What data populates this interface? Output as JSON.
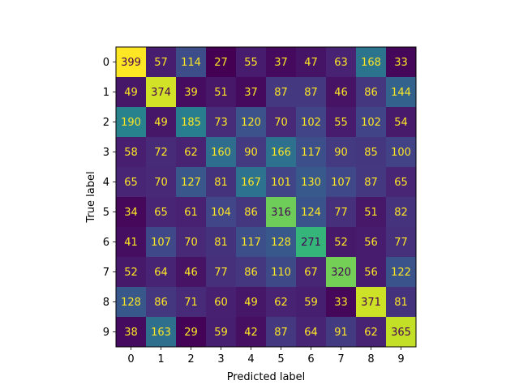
{
  "chart_data": {
    "type": "heatmap",
    "title": "",
    "xlabel": "Predicted label",
    "ylabel": "True label",
    "x_categories": [
      "0",
      "1",
      "2",
      "3",
      "4",
      "5",
      "6",
      "7",
      "8",
      "9"
    ],
    "y_categories": [
      "0",
      "1",
      "2",
      "3",
      "4",
      "5",
      "6",
      "7",
      "8",
      "9"
    ],
    "colormap": "viridis",
    "value_range": [
      27,
      399
    ],
    "text_color_dark": "#440154",
    "text_color_light": "#fde725",
    "values": [
      [
        399,
        57,
        114,
        27,
        55,
        37,
        47,
        63,
        168,
        33
      ],
      [
        49,
        374,
        39,
        51,
        37,
        87,
        87,
        46,
        86,
        144
      ],
      [
        190,
        49,
        185,
        73,
        120,
        70,
        102,
        55,
        102,
        54
      ],
      [
        58,
        72,
        62,
        160,
        90,
        166,
        117,
        90,
        85,
        100
      ],
      [
        65,
        70,
        127,
        81,
        167,
        101,
        130,
        107,
        87,
        65
      ],
      [
        34,
        65,
        61,
        104,
        86,
        316,
        124,
        77,
        51,
        82
      ],
      [
        41,
        107,
        70,
        81,
        117,
        128,
        271,
        52,
        56,
        77
      ],
      [
        52,
        64,
        46,
        77,
        86,
        110,
        67,
        320,
        56,
        122
      ],
      [
        128,
        86,
        71,
        60,
        49,
        62,
        59,
        33,
        371,
        81
      ],
      [
        38,
        163,
        29,
        59,
        42,
        87,
        64,
        91,
        62,
        365
      ]
    ]
  }
}
